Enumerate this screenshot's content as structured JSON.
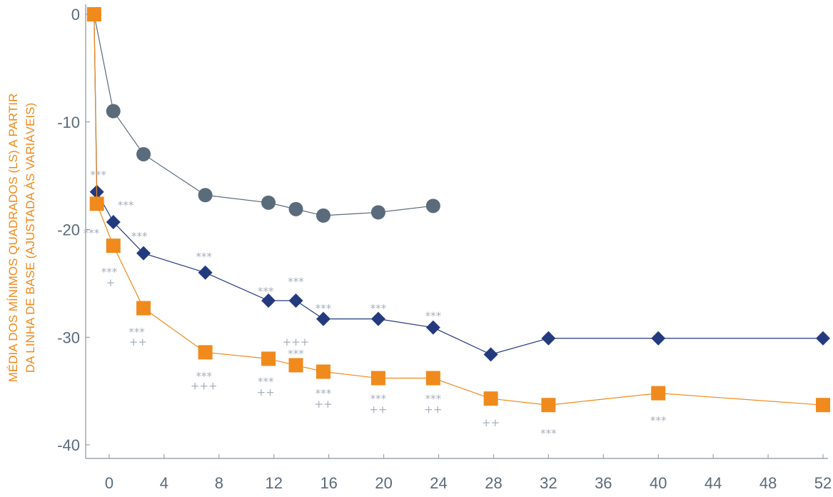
{
  "chart_data": {
    "type": "line",
    "ylabel_lines": [
      "MÉDIA DOS MÍNIMOS QUADRADOS (LS) A PARTIR",
      "DA LINHA DE BASE (AJUSTADA ÀS VARIÁVEIS)"
    ],
    "xlabel": "",
    "xlim": [
      -2,
      52.5
    ],
    "ylim": [
      -40.5,
      0.5
    ],
    "xticks": [
      0,
      4,
      8,
      12,
      16,
      20,
      24,
      28,
      32,
      36,
      40,
      44,
      48,
      52
    ],
    "yticks": [
      0,
      -10,
      -20,
      -30,
      -40
    ],
    "colors": {
      "gray": "#5a6b7b",
      "navy": "#233a7e",
      "orange": "#f08a1c",
      "annotation": "#a7b0bb",
      "axis": "#8a939c"
    },
    "series": [
      {
        "name": "gray",
        "marker": "circle",
        "x": [
          -1.1,
          0.3,
          2.5,
          7,
          11.6,
          13.6,
          15.6,
          19.6,
          23.6
        ],
        "y": [
          0,
          -9,
          -13,
          -16.8,
          -17.5,
          -18.1,
          -18.7,
          -18.4,
          -17.8
        ]
      },
      {
        "name": "navy",
        "marker": "diamond",
        "x": [
          -1.1,
          -0.9,
          0.3,
          2.5,
          7,
          11.6,
          13.6,
          15.6,
          19.6,
          23.6,
          27.8,
          32,
          40,
          52
        ],
        "y": [
          0,
          -16.5,
          -19.3,
          -22.2,
          -24,
          -26.6,
          -26.6,
          -28.3,
          -28.3,
          -29.1,
          -31.6,
          -30.1,
          -30.1,
          -30.1
        ]
      },
      {
        "name": "orange",
        "marker": "square",
        "x": [
          -1.1,
          -0.9,
          0.3,
          2.5,
          7,
          11.6,
          13.6,
          15.6,
          19.6,
          23.6,
          27.8,
          32,
          40,
          52
        ],
        "y": [
          0,
          -17.6,
          -21.5,
          -27.3,
          -31.4,
          -32,
          -32.6,
          -33.2,
          -33.8,
          -33.8,
          -35.7,
          -36.3,
          -35.2,
          -36.3
        ]
      }
    ],
    "annotations": [
      {
        "text": "***",
        "x": -0.8,
        "y": -14.8
      },
      {
        "text": "***",
        "x": 1.2,
        "y": -17.6
      },
      {
        "text": "***",
        "x": -1.3,
        "y": -20.2
      },
      {
        "text": "***",
        "x": 2.2,
        "y": -20.5
      },
      {
        "text": "***",
        "x": 0,
        "y": -23.8
      },
      {
        "text": "+",
        "x": 0.1,
        "y": -24.8
      },
      {
        "text": "***",
        "x": 6.9,
        "y": -22.4
      },
      {
        "text": "***",
        "x": 11.4,
        "y": -25.6
      },
      {
        "text": "***",
        "x": 13.6,
        "y": -24.7
      },
      {
        "text": "***",
        "x": 15.6,
        "y": -27.2
      },
      {
        "text": "***",
        "x": 19.6,
        "y": -27.2
      },
      {
        "text": "***",
        "x": 23.6,
        "y": -27.9
      },
      {
        "text": "***",
        "x": 2,
        "y": -29.4
      },
      {
        "text": "++",
        "x": 2.1,
        "y": -30.3
      },
      {
        "text": "+++",
        "x": 13.6,
        "y": -30.3
      },
      {
        "text": "***",
        "x": 13.6,
        "y": -31.4
      },
      {
        "text": "***",
        "x": 6.9,
        "y": -33.5
      },
      {
        "text": "+++",
        "x": 6.9,
        "y": -34.4
      },
      {
        "text": "***",
        "x": 11.4,
        "y": -34
      },
      {
        "text": "++",
        "x": 11.4,
        "y": -35
      },
      {
        "text": "***",
        "x": 15.6,
        "y": -35.1
      },
      {
        "text": "++",
        "x": 15.6,
        "y": -36.1
      },
      {
        "text": "***",
        "x": 19.6,
        "y": -35.6
      },
      {
        "text": "++",
        "x": 19.6,
        "y": -36.6
      },
      {
        "text": "***",
        "x": 23.6,
        "y": -35.6
      },
      {
        "text": "++",
        "x": 23.6,
        "y": -36.6
      },
      {
        "text": "++",
        "x": 27.8,
        "y": -37.8
      },
      {
        "text": "***",
        "x": 32,
        "y": -38.8
      },
      {
        "text": "***",
        "x": 40,
        "y": -37.6
      }
    ]
  }
}
